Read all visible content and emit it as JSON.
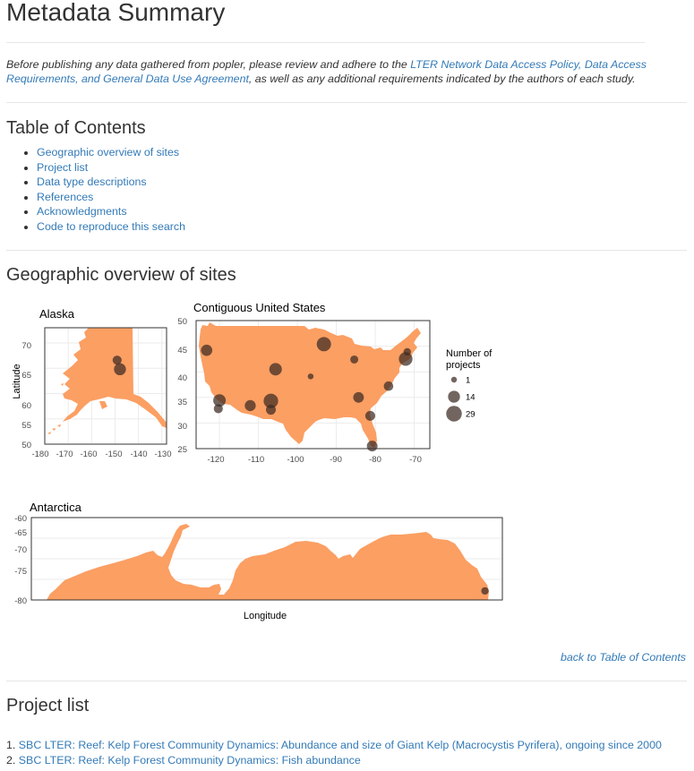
{
  "title": "Metadata Summary",
  "intro": {
    "before": "Before publishing any data gathered from popler, please review and adhere to the ",
    "link": "LTER Network Data Access Policy, Data Access Requirements, and General Data Use Agreement",
    "after": ", as well as any additional requirements indicated by the authors of each study."
  },
  "toc": {
    "title": "Table of Contents",
    "items": [
      "Geographic overview of sites",
      "Project list",
      "Data type descriptions",
      "References",
      "Acknowledgments",
      "Code to reproduce this search"
    ]
  },
  "geo": {
    "title": "Geographic overview of sites",
    "back_link": "back to Table of Contents"
  },
  "chart_data": {
    "type": "scatter",
    "land_color": "#fb9f63",
    "point_color": "#3c2a22",
    "xlabel": "Longitude",
    "ylabel": "Latitude",
    "legend": {
      "title": [
        "Number of",
        "projects"
      ],
      "sizes": [
        1,
        14,
        29
      ],
      "labels": [
        "1",
        "14",
        "29"
      ],
      "placement": "right"
    },
    "panels": [
      {
        "name": "alaska",
        "title": "Alaska",
        "xlim": [
          -180,
          -128
        ],
        "ylim": [
          50,
          73
        ],
        "xticks": [
          -180,
          -170,
          -160,
          -150,
          -140,
          -130
        ],
        "xtick_labels": [
          "-180",
          "-170",
          "-160",
          "-150",
          "-140",
          "-130"
        ],
        "yticks": [
          50,
          55,
          60,
          65,
          70
        ],
        "ytick_labels": [
          "50",
          "55",
          "60",
          "65",
          "70"
        ],
        "points": [
          {
            "x": -149.1,
            "y": 66.6,
            "n": 6
          },
          {
            "x": -147.9,
            "y": 64.8,
            "n": 14
          }
        ]
      },
      {
        "name": "contiguous-us",
        "title": "Contiguous United States",
        "xlim": [
          -126,
          -66
        ],
        "ylim": [
          25,
          50
        ],
        "xticks": [
          -120,
          -110,
          -100,
          -90,
          -80,
          -70
        ],
        "xtick_labels": [
          "-120",
          "-110",
          "-100",
          "-90",
          "-80",
          "-70"
        ],
        "yticks": [
          25,
          30,
          35,
          40,
          45,
          50
        ],
        "ytick_labels": [
          "25",
          "30",
          "35",
          "40",
          "45",
          "50"
        ],
        "points": [
          {
            "x": -123.3,
            "y": 44.2,
            "n": 12
          },
          {
            "x": -120.0,
            "y": 34.4,
            "n": 16
          },
          {
            "x": -120.3,
            "y": 32.8,
            "n": 6
          },
          {
            "x": -112.1,
            "y": 33.4,
            "n": 11
          },
          {
            "x": -106.8,
            "y": 34.3,
            "n": 24
          },
          {
            "x": -106.8,
            "y": 32.6,
            "n": 8
          },
          {
            "x": -105.6,
            "y": 40.5,
            "n": 16
          },
          {
            "x": -96.6,
            "y": 39.1,
            "n": 1
          },
          {
            "x": -93.2,
            "y": 45.4,
            "n": 23
          },
          {
            "x": -85.4,
            "y": 42.4,
            "n": 4
          },
          {
            "x": -84.3,
            "y": 35.0,
            "n": 10
          },
          {
            "x": -81.3,
            "y": 31.4,
            "n": 8
          },
          {
            "x": -76.6,
            "y": 37.2,
            "n": 7
          },
          {
            "x": -80.8,
            "y": 25.5,
            "n": 10
          },
          {
            "x": -72.2,
            "y": 42.5,
            "n": 20
          },
          {
            "x": -71.8,
            "y": 43.9,
            "n": 3
          }
        ]
      },
      {
        "name": "antarctica",
        "title": "Antarctica",
        "xlim": [
          -180,
          180
        ],
        "ylim": [
          -80,
          -60
        ],
        "xticks": [],
        "xtick_labels": [],
        "yticks": [
          -80,
          -75,
          -70,
          -65,
          -60
        ],
        "ytick_labels": [
          "-80",
          "-75",
          "-70",
          "-65",
          "-60"
        ],
        "points": [
          {
            "x": 166.7,
            "y": -77.8,
            "n": 3
          }
        ]
      }
    ]
  },
  "projects": {
    "title": "Project list",
    "items": [
      {
        "num": "1.",
        "label": "SBC LTER: Reef: Kelp Forest Community Dynamics: Abundance and size of Giant Kelp (Macrocystis Pyrifera), ongoing since 2000"
      },
      {
        "num": "2.",
        "label": "SBC LTER: Reef: Kelp Forest Community Dynamics: Fish abundance"
      }
    ]
  }
}
